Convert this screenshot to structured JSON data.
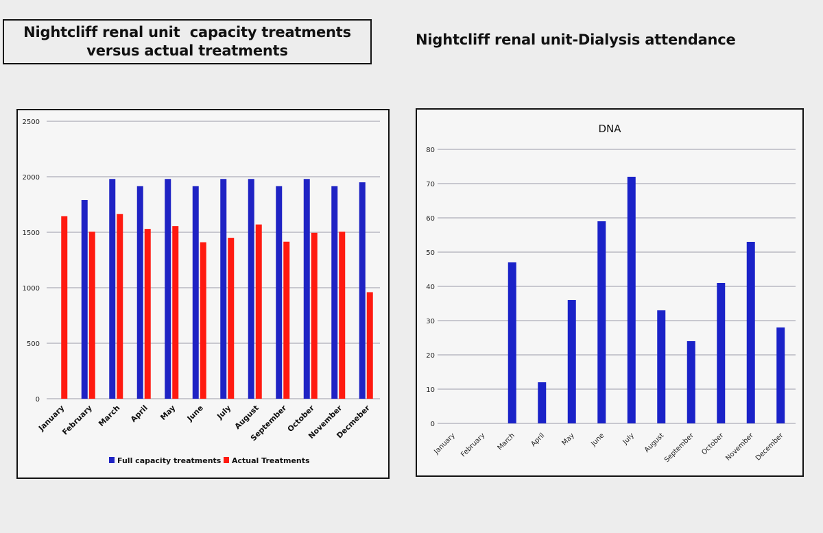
{
  "header": {
    "left_title_lines": [
      "Nightcliff renal unit  capacity treatments",
      "versus actual treatments"
    ],
    "right_title": "Nightcliff renal unit-Dialysis attendance"
  },
  "colors": {
    "full_capacity": "#1f23c4",
    "actual": "#ff1a10",
    "dna": "#1a22c8",
    "grid": "#9a9aa8"
  },
  "chart_data": [
    {
      "type": "bar",
      "title": "",
      "categories": [
        "January",
        "February",
        "March",
        "April",
        "May",
        "June",
        "July",
        "August",
        "September",
        "October",
        "November",
        "Decmeber"
      ],
      "series": [
        {
          "name": "Full capacity treatments",
          "values": [
            0,
            1790,
            1980,
            1915,
            1980,
            1915,
            1980,
            1980,
            1915,
            1980,
            1915,
            1950
          ]
        },
        {
          "name": "Actual Treatments",
          "values": [
            1645,
            1505,
            1665,
            1530,
            1555,
            1410,
            1450,
            1570,
            1415,
            1495,
            1505,
            960
          ]
        }
      ],
      "ylim": [
        0,
        2500
      ],
      "yticks": [
        0,
        500,
        1000,
        1500,
        2000,
        2500
      ],
      "xlabel": "",
      "ylabel": "",
      "legend": "bottom"
    },
    {
      "type": "bar",
      "title": "DNA",
      "categories": [
        "January",
        "February",
        "March",
        "April",
        "May",
        "June",
        "July",
        "August",
        "September",
        "October",
        "November",
        "December"
      ],
      "values": [
        0,
        0,
        47,
        12,
        36,
        59,
        72,
        33,
        24,
        41,
        53,
        28
      ],
      "ylim": [
        0,
        80
      ],
      "yticks": [
        0,
        10,
        20,
        30,
        40,
        50,
        60,
        70,
        80
      ],
      "xlabel": "",
      "ylabel": "",
      "legend": "none"
    }
  ]
}
